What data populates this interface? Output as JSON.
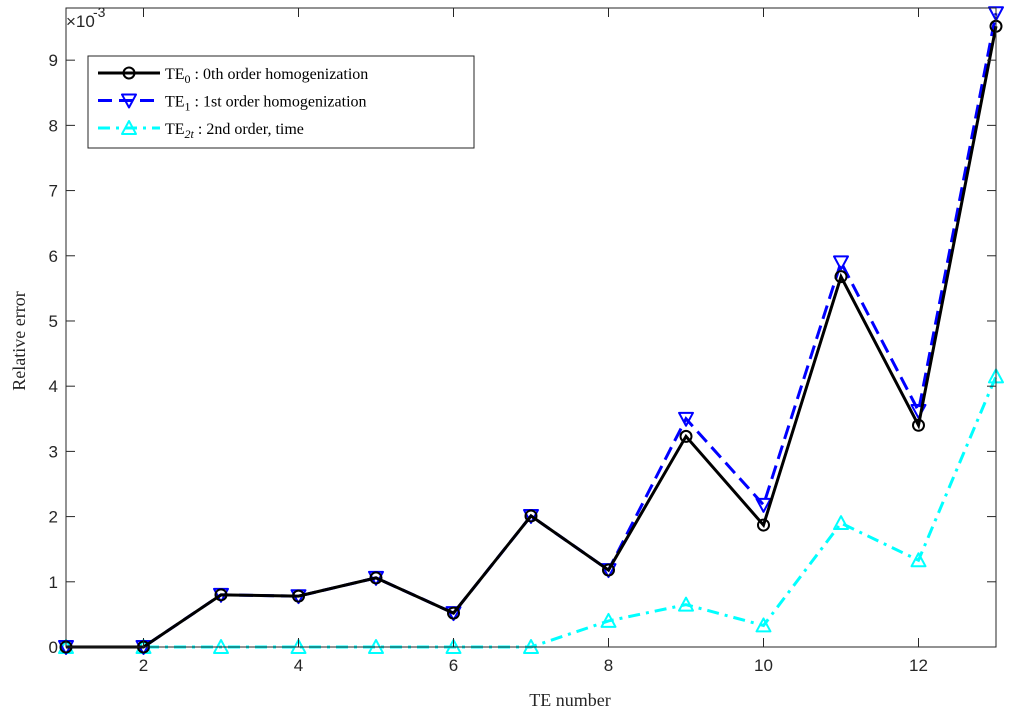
{
  "chart_data": {
    "type": "line",
    "xlabel": "TE number",
    "ylabel": "Relative error",
    "exponent_label": "×10",
    "exponent_power": "-3",
    "xlim": [
      1,
      13
    ],
    "ylim": [
      0,
      9.8
    ],
    "xticks": [
      2,
      4,
      6,
      8,
      10,
      12
    ],
    "yticks": [
      0,
      1,
      2,
      3,
      4,
      5,
      6,
      7,
      8,
      9
    ],
    "legend_position": "top-left",
    "grid": false,
    "x": [
      1,
      2,
      3,
      4,
      5,
      6,
      7,
      8,
      9,
      10,
      11,
      12,
      13
    ],
    "series": [
      {
        "key": "te0",
        "legend_main": "TE",
        "legend_sub": "0",
        "legend_rest": " : 0th order homogenization",
        "color": "#000000",
        "dash": "solid",
        "marker": "circle",
        "values": [
          0.0,
          0.0,
          0.8,
          0.78,
          1.06,
          0.52,
          2.01,
          1.18,
          3.23,
          1.87,
          5.68,
          3.4,
          9.52
        ]
      },
      {
        "key": "te1",
        "legend_main": "TE",
        "legend_sub": "1",
        "legend_rest": " : 1st order homogenization",
        "color": "#0000ff",
        "dash": "dashed",
        "marker": "triangle-down",
        "values": [
          0.0,
          0.0,
          0.8,
          0.78,
          1.06,
          0.52,
          2.01,
          1.18,
          3.5,
          2.18,
          5.9,
          3.62,
          9.72
        ]
      },
      {
        "key": "te2t",
        "legend_main": "TE",
        "legend_sub": "2t",
        "legend_rest": " : 2nd order, time",
        "color": "#00ffff",
        "dash": "dashdot",
        "marker": "triangle-up",
        "values": [
          0.0,
          0.0,
          0.0,
          0.0,
          0.0,
          0.0,
          0.0,
          0.4,
          0.65,
          0.33,
          1.9,
          1.33,
          4.15
        ]
      }
    ]
  }
}
